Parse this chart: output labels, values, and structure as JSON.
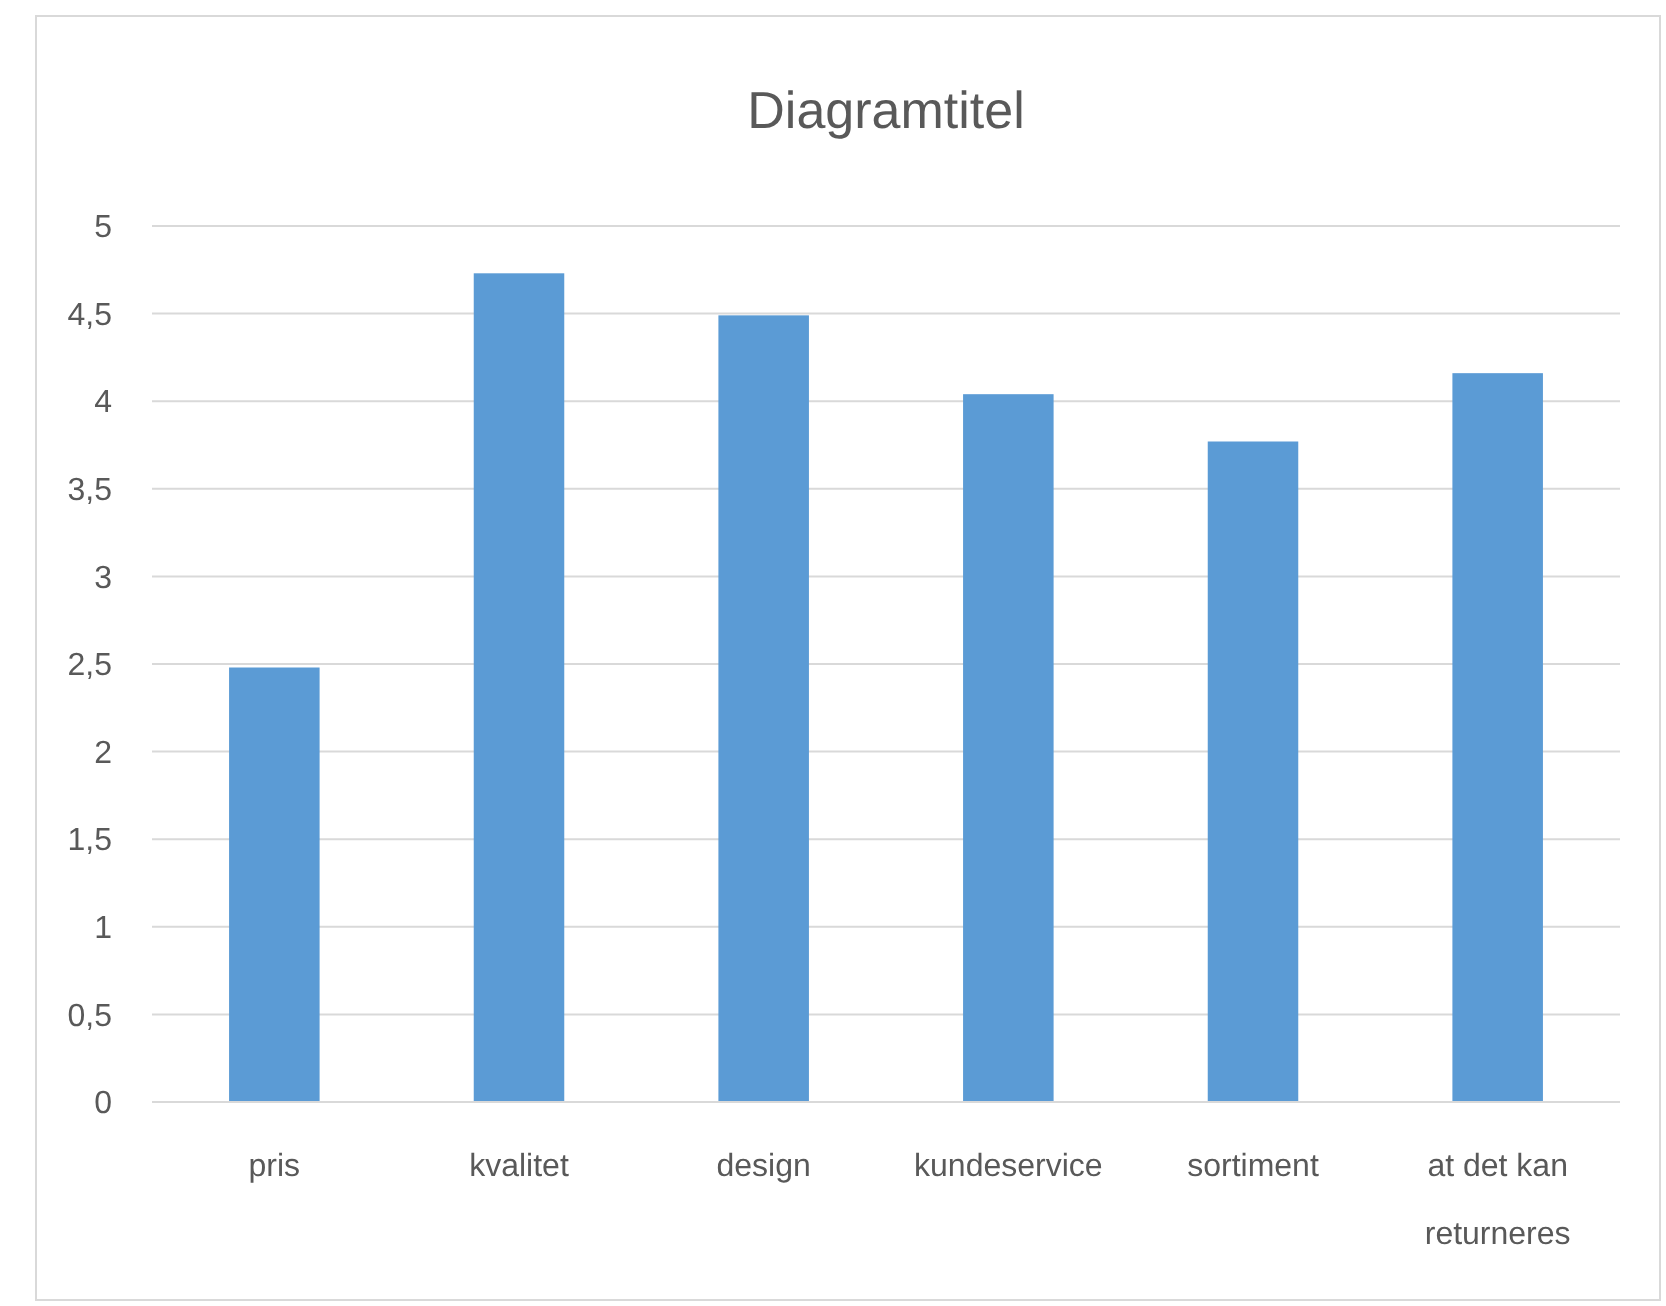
{
  "chart_data": {
    "type": "bar",
    "title": "Diagramtitel",
    "categories": [
      "pris",
      "kvalitet",
      "design",
      "kundeservice",
      "sortiment",
      "at det kan returneres"
    ],
    "values": [
      2.48,
      4.73,
      4.49,
      4.04,
      3.77,
      4.16
    ],
    "color": "#5b9bd5",
    "ylim": [
      0,
      5
    ],
    "yticks": [
      0,
      {
        "value": 0.5,
        "label": "0,5"
      },
      1,
      {
        "value": 1.5,
        "label": "1,5"
      },
      2,
      {
        "value": 2.5,
        "label": "2,5"
      },
      3,
      {
        "value": 3.5,
        "label": "3,5"
      },
      4,
      {
        "value": 4.5,
        "label": "4,5"
      },
      5
    ],
    "grid": "y"
  }
}
